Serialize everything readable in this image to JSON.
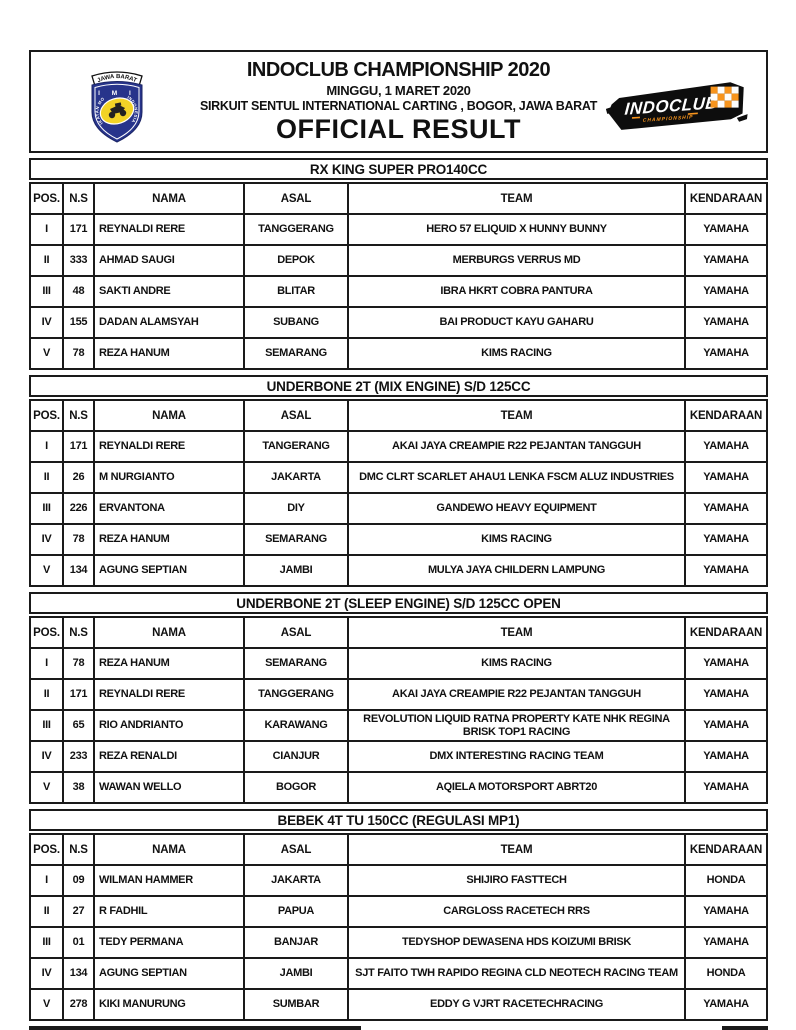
{
  "header": {
    "title": "INDOCLUB CHAMPIONSHIP 2020",
    "date": "MINGGU, 1 MARET 2020",
    "venue": "SIRKUIT SENTUL INTERNATIONAL CARTING , BOGOR, JAWA BARAT",
    "result_label": "OFFICIAL RESULT",
    "left_badge": {
      "banner": "JAWA BARAT",
      "org": "I M I",
      "ring_left": "IKATAN MOTOR",
      "ring_right": "INDONESIA"
    },
    "right_logo": {
      "text": "INDOCLUB",
      "subtext": "CHAMPIONSHIP"
    }
  },
  "colors": {
    "border": "#1a1a1a",
    "shield_blue": "#27348b",
    "badge_yellow": "#f2d327",
    "logo_black": "#0d0d0d",
    "logo_orange": "#f7941d"
  },
  "columns": [
    "POS.",
    "N.S",
    "NAMA",
    "ASAL",
    "TEAM",
    "KENDARAAN"
  ],
  "tables": [
    {
      "title": "RX KING SUPER PRO140CC",
      "rows": [
        [
          "I",
          "171",
          "REYNALDI RERE",
          "TANGGERANG",
          "HERO 57 ELIQUID X HUNNY BUNNY",
          "YAMAHA"
        ],
        [
          "II",
          "333",
          "AHMAD SAUGI",
          "DEPOK",
          "MERBURGS VERRUS MD",
          "YAMAHA"
        ],
        [
          "III",
          "48",
          "SAKTI ANDRE",
          "BLITAR",
          "IBRA HKRT COBRA PANTURA",
          "YAMAHA"
        ],
        [
          "IV",
          "155",
          "DADAN ALAMSYAH",
          "SUBANG",
          "BAI PRODUCT KAYU GAHARU",
          "YAMAHA"
        ],
        [
          "V",
          "78",
          "REZA HANUM",
          "SEMARANG",
          "KIMS RACING",
          "YAMAHA"
        ]
      ]
    },
    {
      "title": "UNDERBONE 2T (MIX ENGINE) S/D 125CC",
      "rows": [
        [
          "I",
          "171",
          "REYNALDI RERE",
          "TANGERANG",
          "AKAI JAYA CREAMPIE R22 PEJANTAN TANGGUH",
          "YAMAHA"
        ],
        [
          "II",
          "26",
          "M NURGIANTO",
          "JAKARTA",
          "DMC CLRT SCARLET AHAU1 LENKA FSCM ALUZ INDUSTRIES",
          "YAMAHA"
        ],
        [
          "III",
          "226",
          "ERVANTONA",
          "DIY",
          "GANDEWO HEAVY EQUIPMENT",
          "YAMAHA"
        ],
        [
          "IV",
          "78",
          "REZA HANUM",
          "SEMARANG",
          "KIMS RACING",
          "YAMAHA"
        ],
        [
          "V",
          "134",
          "AGUNG SEPTIAN",
          "JAMBI",
          "MULYA JAYA CHILDERN LAMPUNG",
          "YAMAHA"
        ]
      ]
    },
    {
      "title": "UNDERBONE 2T (SLEEP ENGINE) S/D 125CC OPEN",
      "rows": [
        [
          "I",
          "78",
          "REZA HANUM",
          "SEMARANG",
          "KIMS RACING",
          "YAMAHA"
        ],
        [
          "II",
          "171",
          "REYNALDI RERE",
          "TANGGERANG",
          "AKAI JAYA CREAMPIE R22 PEJANTAN TANGGUH",
          "YAMAHA"
        ],
        [
          "III",
          "65",
          "RIO ANDRIANTO",
          "KARAWANG",
          "REVOLUTION LIQUID RATNA PROPERTY KATE NHK REGINA BRISK TOP1 RACING",
          "YAMAHA"
        ],
        [
          "IV",
          "233",
          "REZA RENALDI",
          "CIANJUR",
          "DMX INTERESTING RACING TEAM",
          "YAMAHA"
        ],
        [
          "V",
          "38",
          "WAWAN WELLO",
          "BOGOR",
          "AQIELA MOTORSPORT ABRT20",
          "YAMAHA"
        ]
      ]
    },
    {
      "title": "BEBEK 4T TU 150CC (REGULASI MP1)",
      "rows": [
        [
          "I",
          "09",
          "WILMAN HAMMER",
          "JAKARTA",
          "SHIJIRO FASTTECH",
          "HONDA"
        ],
        [
          "II",
          "27",
          "R FADHIL",
          "PAPUA",
          "CARGLOSS RACETECH RRS",
          "YAMAHA"
        ],
        [
          "III",
          "01",
          "TEDY PERMANA",
          "BANJAR",
          "TEDYSHOP DEWASENA HDS KOIZUMI BRISK",
          "YAMAHA"
        ],
        [
          "IV",
          "134",
          "AGUNG SEPTIAN",
          "JAMBI",
          "SJT FAITO TWH RAPIDO REGINA CLD NEOTECH RACING TEAM",
          "HONDA"
        ],
        [
          "V",
          "278",
          "KIKI MANURUNG",
          "SUMBAR",
          "EDDY G VJRT RACETECHRACING",
          "YAMAHA"
        ]
      ]
    }
  ]
}
